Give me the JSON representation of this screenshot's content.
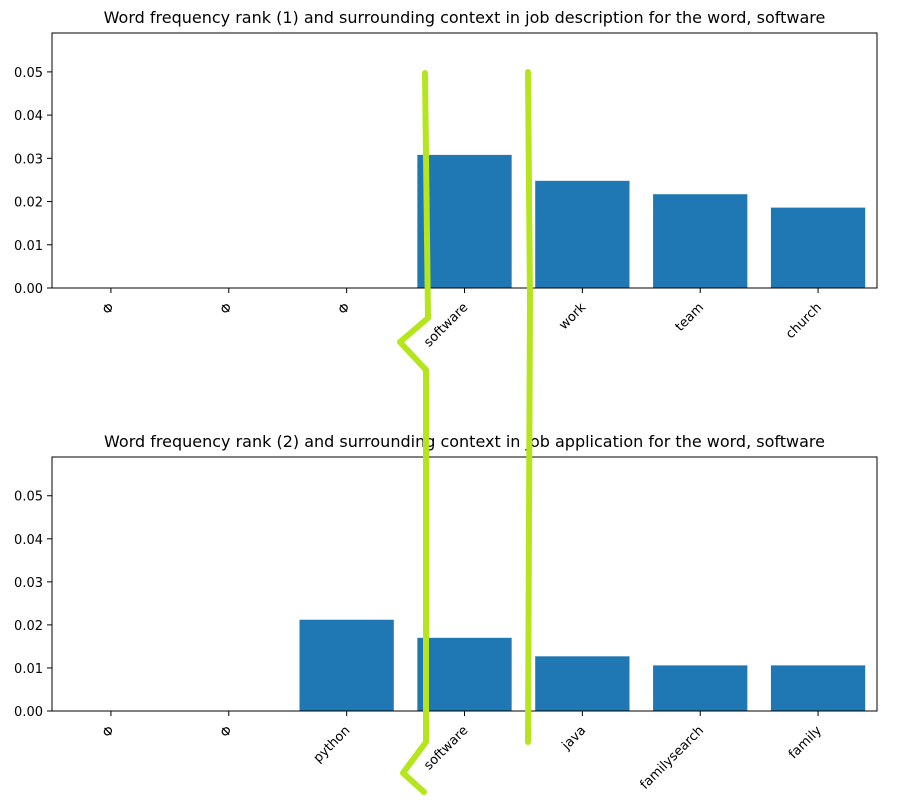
{
  "chart_data": [
    {
      "type": "bar",
      "title": "Word frequency rank (1) and surrounding context in job description for the word, software",
      "categories": [
        "Φ",
        "Φ",
        "Φ",
        "software",
        "work",
        "team",
        "church"
      ],
      "values": [
        0,
        0,
        0,
        0.0308,
        0.0248,
        0.0217,
        0.0186
      ],
      "xlabel": "",
      "ylabel": "",
      "ylim": [
        0,
        0.059
      ],
      "yticks": [
        "0.00",
        "0.01",
        "0.02",
        "0.03",
        "0.04",
        "0.05"
      ],
      "grid": false,
      "bar_color": "#1f77b4"
    },
    {
      "type": "bar",
      "title": "Word frequency rank (2) and surrounding context in job application for the word, software",
      "categories": [
        "Φ",
        "Φ",
        "python",
        "software",
        "java",
        "familysearch",
        "family"
      ],
      "values": [
        0,
        0,
        0.0212,
        0.017,
        0.0127,
        0.0106,
        0.0106
      ],
      "xlabel": "",
      "ylabel": "",
      "ylim": [
        0,
        0.059
      ],
      "yticks": [
        "0.00",
        "0.01",
        "0.02",
        "0.03",
        "0.04",
        "0.05"
      ],
      "grid": false,
      "bar_color": "#1f77b4"
    }
  ],
  "annotation": {
    "stroke_color": "#b5e61d",
    "description_shape": "bracket around the software bar"
  }
}
